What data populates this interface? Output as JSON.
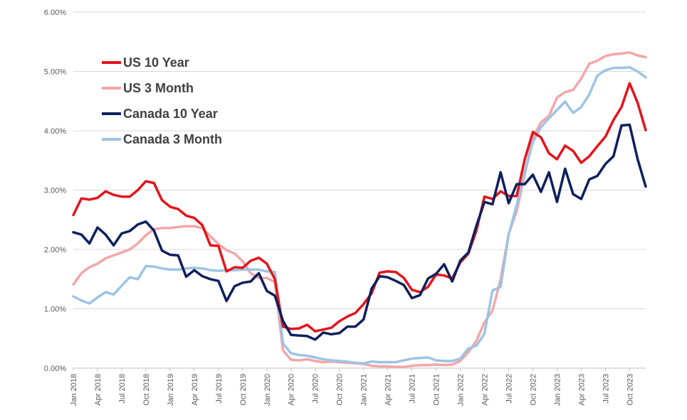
{
  "chart_data": {
    "type": "line",
    "title": "",
    "xlabel": "",
    "ylabel": "",
    "ylim": [
      0,
      0.06
    ],
    "yticks": [
      "0.00%",
      "1.00%",
      "2.00%",
      "3.00%",
      "4.00%",
      "5.00%",
      "6.00%"
    ],
    "ytick_values": [
      0,
      0.01,
      0.02,
      0.03,
      0.04,
      0.05,
      0.06
    ],
    "grid": "horizontal",
    "legend_position": "top-left",
    "x": [
      "Jan 2018",
      "Feb 2018",
      "Mar 2018",
      "Apr 2018",
      "May 2018",
      "Jun 2018",
      "Jul 2018",
      "Aug 2018",
      "Sep 2018",
      "Oct 2018",
      "Nov 2018",
      "Dec 2018",
      "Jan 2019",
      "Feb 2019",
      "Mar 2019",
      "Apr 2019",
      "May 2019",
      "Jun 2019",
      "Jul 2019",
      "Aug 2019",
      "Sep 2019",
      "Oct 2019",
      "Nov 2019",
      "Dec 2019",
      "Jan 2020",
      "Feb 2020",
      "Mar 2020",
      "Apr 2020",
      "May 2020",
      "Jun 2020",
      "Jul 2020",
      "Aug 2020",
      "Sep 2020",
      "Oct 2020",
      "Nov 2020",
      "Dec 2020",
      "Jan 2021",
      "Feb 2021",
      "Mar 2021",
      "Apr 2021",
      "May 2021",
      "Jun 2021",
      "Jul 2021",
      "Aug 2021",
      "Sep 2021",
      "Oct 2021",
      "Nov 2021",
      "Dec 2021",
      "Jan 2022",
      "Feb 2022",
      "Mar 2022",
      "Apr 2022",
      "May 2022",
      "Jun 2022",
      "Jul 2022",
      "Aug 2022",
      "Sep 2022",
      "Oct 2022",
      "Nov 2022",
      "Dec 2022",
      "Jan 2023",
      "Feb 2023",
      "Mar 2023",
      "Apr 2023",
      "May 2023",
      "Jun 2023",
      "Jul 2023",
      "Aug 2023",
      "Sep 2023",
      "Oct 2023",
      "Nov 2023",
      "Dec 2023"
    ],
    "xtick_labels": [
      "Jan 2018",
      "Apr 2018",
      "Jul 2018",
      "Oct 2018",
      "Jan 2019",
      "Apr 2019",
      "Jul 2019",
      "Oct 2019",
      "Jan 2020",
      "Apr 2020",
      "Jul 2020",
      "Oct 2020",
      "Jan 2021",
      "Apr 2021",
      "Jul 2021",
      "Oct 2021",
      "Jan 2022",
      "Apr 2022",
      "Jul 2022",
      "Oct 2022",
      "Jan 2023",
      "Apr 2023",
      "Jul 2023",
      "Oct 2023"
    ],
    "series": [
      {
        "name": "US 10 Year",
        "color": "#e3141b",
        "values": [
          0.0258,
          0.0286,
          0.0284,
          0.0287,
          0.0298,
          0.0292,
          0.0289,
          0.0289,
          0.03,
          0.0315,
          0.0312,
          0.0283,
          0.0272,
          0.0268,
          0.0257,
          0.0253,
          0.0241,
          0.0207,
          0.0206,
          0.0163,
          0.017,
          0.0169,
          0.0181,
          0.0186,
          0.0176,
          0.015,
          0.007,
          0.0066,
          0.0067,
          0.0073,
          0.0062,
          0.0065,
          0.0068,
          0.0079,
          0.0087,
          0.0093,
          0.0108,
          0.0126,
          0.0161,
          0.0163,
          0.0162,
          0.0152,
          0.0132,
          0.0128,
          0.0137,
          0.0158,
          0.0156,
          0.0151,
          0.0178,
          0.0193,
          0.0232,
          0.0289,
          0.0285,
          0.0298,
          0.029,
          0.029,
          0.0352,
          0.0398,
          0.0389,
          0.0362,
          0.0352,
          0.0375,
          0.0366,
          0.0346,
          0.0357,
          0.0374,
          0.039,
          0.0418,
          0.044,
          0.048,
          0.0447,
          0.0401
        ]
      },
      {
        "name": "US 3 Month",
        "color": "#f4a6a8",
        "values": [
          0.0141,
          0.016,
          0.017,
          0.0176,
          0.0185,
          0.019,
          0.0195,
          0.02,
          0.021,
          0.0224,
          0.0234,
          0.0236,
          0.0236,
          0.0238,
          0.0239,
          0.0239,
          0.0236,
          0.0222,
          0.0209,
          0.0199,
          0.0193,
          0.018,
          0.016,
          0.0152,
          0.0152,
          0.0145,
          0.003,
          0.0014,
          0.0013,
          0.0015,
          0.0012,
          0.001,
          0.0011,
          0.001,
          0.0009,
          0.0008,
          0.0007,
          0.0004,
          0.0003,
          0.0003,
          0.0002,
          0.0002,
          0.0004,
          0.0005,
          0.0005,
          0.0006,
          0.0005,
          0.0006,
          0.0012,
          0.0027,
          0.0046,
          0.0077,
          0.0097,
          0.015,
          0.0226,
          0.0265,
          0.0326,
          0.0389,
          0.0414,
          0.0425,
          0.0456,
          0.0465,
          0.0469,
          0.0488,
          0.0513,
          0.0518,
          0.0526,
          0.0529,
          0.053,
          0.0532,
          0.0527,
          0.0524
        ]
      },
      {
        "name": "Canada 10 Year",
        "color": "#0d1f5c",
        "values": [
          0.0229,
          0.0225,
          0.021,
          0.0237,
          0.0225,
          0.0207,
          0.0227,
          0.0231,
          0.0242,
          0.0247,
          0.0232,
          0.0198,
          0.0191,
          0.019,
          0.0154,
          0.0165,
          0.0155,
          0.015,
          0.0147,
          0.0113,
          0.0138,
          0.0144,
          0.0146,
          0.016,
          0.013,
          0.0122,
          0.008,
          0.0056,
          0.0055,
          0.0054,
          0.0048,
          0.006,
          0.0057,
          0.0059,
          0.007,
          0.007,
          0.0082,
          0.0134,
          0.0155,
          0.0153,
          0.0147,
          0.014,
          0.0118,
          0.0123,
          0.0151,
          0.0159,
          0.0175,
          0.0146,
          0.0181,
          0.0195,
          0.024,
          0.028,
          0.0276,
          0.033,
          0.0278,
          0.031,
          0.031,
          0.0326,
          0.0297,
          0.033,
          0.028,
          0.0336,
          0.0293,
          0.0285,
          0.0318,
          0.0324,
          0.0344,
          0.0357,
          0.0409,
          0.041,
          0.0352,
          0.0306
        ]
      },
      {
        "name": "Canada 3 Month",
        "color": "#9dc3e6",
        "values": [
          0.0121,
          0.0114,
          0.0109,
          0.0119,
          0.0128,
          0.0124,
          0.0139,
          0.0153,
          0.015,
          0.0172,
          0.0171,
          0.0168,
          0.0166,
          0.0166,
          0.0168,
          0.0169,
          0.0168,
          0.0165,
          0.0164,
          0.0165,
          0.0165,
          0.0166,
          0.0166,
          0.0166,
          0.0163,
          0.0162,
          0.0042,
          0.0025,
          0.0022,
          0.0021,
          0.0018,
          0.0015,
          0.0013,
          0.0012,
          0.0011,
          0.0009,
          0.0008,
          0.0011,
          0.001,
          0.001,
          0.001,
          0.0013,
          0.0016,
          0.0017,
          0.0018,
          0.0013,
          0.0012,
          0.0012,
          0.0016,
          0.0033,
          0.0038,
          0.0058,
          0.0131,
          0.0137,
          0.0225,
          0.0275,
          0.033,
          0.0381,
          0.0406,
          0.0421,
          0.0435,
          0.0449,
          0.043,
          0.044,
          0.0461,
          0.0493,
          0.0502,
          0.0506,
          0.0506,
          0.0507,
          0.05,
          0.049
        ]
      }
    ]
  }
}
